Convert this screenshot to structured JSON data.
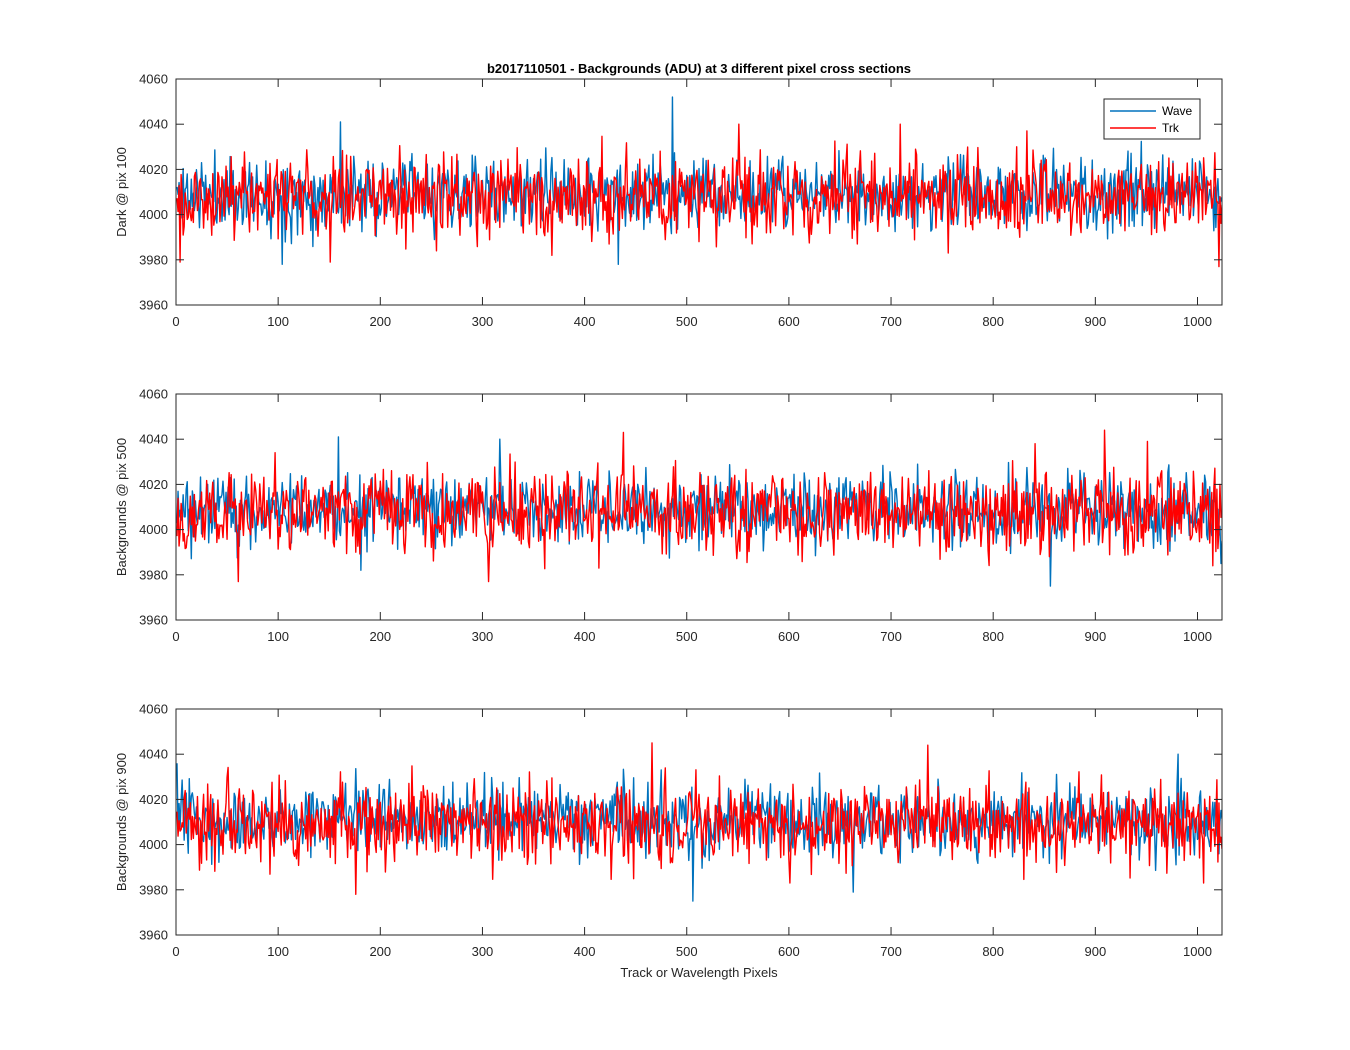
{
  "figure": {
    "title": "b2017110501 - Backgrounds (ADU) at 3 different pixel cross sections",
    "xlabel": "Track or Wavelength Pixels"
  },
  "chart_data": [
    {
      "type": "line",
      "ylabel": "Dark @ pix 100",
      "xlim": [
        0,
        1024
      ],
      "ylim": [
        3960,
        4060
      ],
      "xticks": [
        0,
        100,
        200,
        300,
        400,
        500,
        600,
        700,
        800,
        900,
        1000
      ],
      "yticks": [
        3960,
        3980,
        4000,
        4020,
        4040,
        4060
      ],
      "grid": false,
      "legend": "top-right",
      "n_points": 1024,
      "series": [
        {
          "name": "Wave",
          "color": "#0072BD",
          "mean": 4009,
          "std": 8,
          "min": 3978,
          "max": 4052,
          "seed": 11,
          "spikes": [
            [
              160,
              4041
            ],
            [
              485,
              4052
            ],
            [
              432,
              3978
            ],
            [
              103,
              3978
            ],
            [
              230,
              4027
            ]
          ]
        },
        {
          "name": "Trk",
          "color": "#FF0000",
          "mean": 4009,
          "std": 9,
          "min": 3977,
          "max": 4040,
          "seed": 12,
          "spikes": [
            [
              3,
              3979
            ],
            [
              550,
              4040
            ],
            [
              708,
              4040
            ],
            [
              832,
              4037
            ],
            [
              1020,
              3977
            ],
            [
              150,
              3979
            ],
            [
              755,
              3983
            ]
          ]
        }
      ]
    },
    {
      "type": "line",
      "ylabel": "Backgrounds @ pix 500",
      "xlim": [
        0,
        1024
      ],
      "ylim": [
        3960,
        4060
      ],
      "xticks": [
        0,
        100,
        200,
        300,
        400,
        500,
        600,
        700,
        800,
        900,
        1000
      ],
      "yticks": [
        3960,
        3980,
        4000,
        4020,
        4040,
        4060
      ],
      "grid": false,
      "n_points": 1024,
      "series": [
        {
          "name": "Wave",
          "color": "#0072BD",
          "mean": 4009,
          "std": 8,
          "min": 3975,
          "max": 4041,
          "seed": 21,
          "spikes": [
            [
              158,
              4041
            ],
            [
              316,
              4040
            ],
            [
              855,
              3975
            ],
            [
              1022,
              3985
            ],
            [
              180,
              3982
            ]
          ]
        },
        {
          "name": "Trk",
          "color": "#FF0000",
          "mean": 4008,
          "std": 9,
          "min": 3977,
          "max": 4044,
          "seed": 22,
          "spikes": [
            [
              60,
              3977
            ],
            [
              305,
              3977
            ],
            [
              437,
              4043
            ],
            [
              908,
              4044
            ],
            [
              840,
              4038
            ],
            [
              950,
              4039
            ]
          ]
        }
      ]
    },
    {
      "type": "line",
      "ylabel": "Backgrounds @ pix 900",
      "xlim": [
        0,
        1024
      ],
      "ylim": [
        3960,
        4060
      ],
      "xticks": [
        0,
        100,
        200,
        300,
        400,
        500,
        600,
        700,
        800,
        900,
        1000
      ],
      "yticks": [
        3960,
        3980,
        4000,
        4020,
        4040,
        4060
      ],
      "grid": false,
      "n_points": 1024,
      "series": [
        {
          "name": "Wave",
          "color": "#0072BD",
          "mean": 4011,
          "std": 8,
          "min": 3975,
          "max": 4040,
          "seed": 31,
          "spikes": [
            [
              0,
              4036
            ],
            [
              505,
              3975
            ],
            [
              662,
              3979
            ],
            [
              980,
              4040
            ]
          ]
        },
        {
          "name": "Trk",
          "color": "#FF0000",
          "mean": 4010,
          "std": 9,
          "min": 3978,
          "max": 4045,
          "seed": 32,
          "spikes": [
            [
              175,
              3978
            ],
            [
              465,
              4045
            ],
            [
              735,
              4044
            ],
            [
              600,
              3983
            ],
            [
              1005,
              3983
            ]
          ]
        }
      ]
    }
  ]
}
